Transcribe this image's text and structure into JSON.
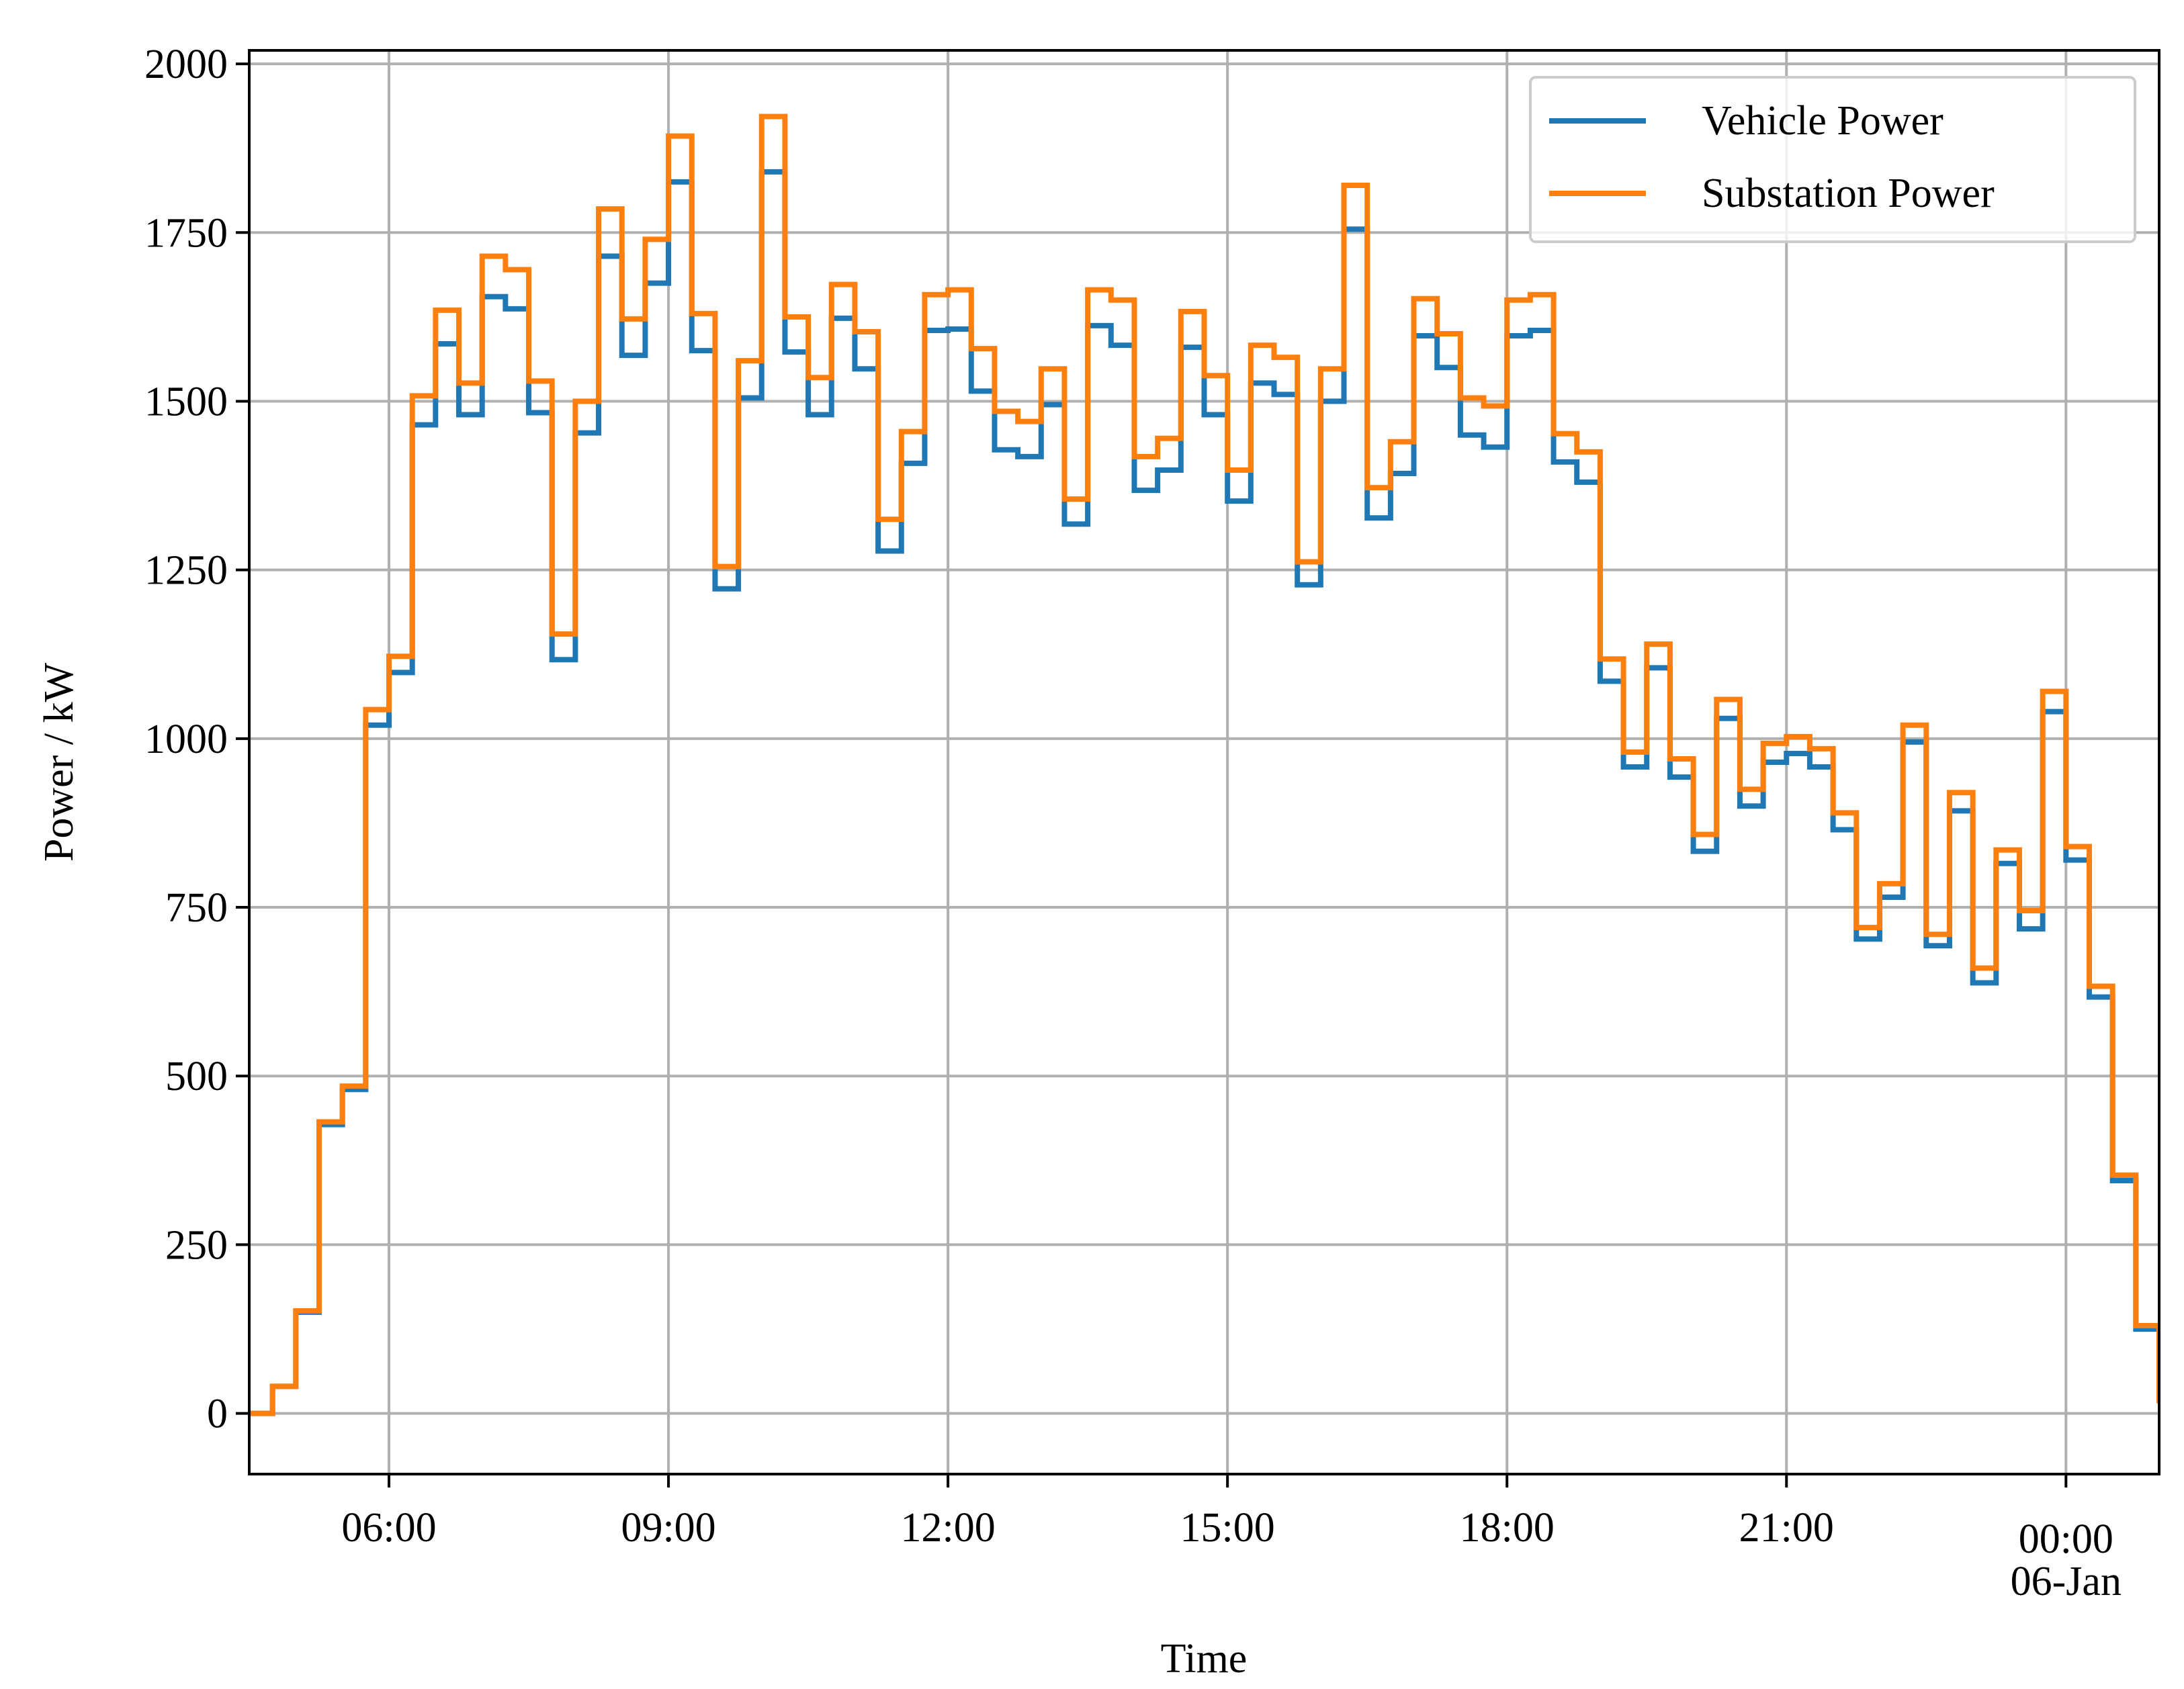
{
  "chart_data": {
    "type": "step",
    "x_label": "Time",
    "y_label": "Power / kW",
    "x": [
      4.5,
      4.75,
      5,
      5.25,
      5.5,
      5.75,
      6,
      6.25,
      6.5,
      6.75,
      7,
      7.25,
      7.5,
      7.75,
      8,
      8.25,
      8.5,
      8.75,
      9,
      9.25,
      9.5,
      9.75,
      10,
      10.25,
      10.5,
      10.75,
      11,
      11.25,
      11.5,
      11.75,
      12,
      12.25,
      12.5,
      12.75,
      13,
      13.25,
      13.5,
      13.75,
      14,
      14.25,
      14.5,
      14.75,
      15,
      15.25,
      15.5,
      15.75,
      16,
      16.25,
      16.5,
      16.75,
      17,
      17.25,
      17.5,
      17.75,
      18,
      18.25,
      18.5,
      18.75,
      19,
      19.25,
      19.5,
      19.75,
      20,
      20.25,
      20.5,
      20.75,
      21,
      21.25,
      21.5,
      21.75,
      22,
      22.25,
      22.5,
      22.75,
      23,
      23.25,
      23.5,
      23.75,
      24,
      24.25,
      24.5,
      24.75,
      25
    ],
    "series": [
      {
        "name": "Vehicle Power",
        "color": "#1f77b4",
        "values": [
          0,
          40,
          150,
          428,
          480,
          1020,
          1098,
          1465,
          1585,
          1480,
          1655,
          1637,
          1483,
          1117,
          1453,
          1715,
          1568,
          1675,
          1825,
          1575,
          1222,
          1505,
          1840,
          1573,
          1480,
          1623,
          1548,
          1278,
          1408,
          1605,
          1607,
          1515,
          1428,
          1418,
          1495,
          1318,
          1612,
          1583,
          1368,
          1398,
          1580,
          1480,
          1352,
          1527,
          1510,
          1228,
          1500,
          1755,
          1327,
          1393,
          1597,
          1550,
          1450,
          1432,
          1597,
          1605,
          1410,
          1380,
          1085,
          958,
          1105,
          943,
          833,
          1030,
          900,
          965,
          978,
          958,
          865,
          703,
          765,
          995,
          693,
          893,
          638,
          815,
          718,
          1040,
          820,
          617,
          345,
          125,
          15
        ]
      },
      {
        "name": "Substation Power",
        "color": "#ff7f0e",
        "values": [
          0,
          40,
          152,
          432,
          485,
          1043,
          1122,
          1508,
          1635,
          1527,
          1715,
          1695,
          1530,
          1155,
          1500,
          1785,
          1622,
          1740,
          1893,
          1630,
          1255,
          1560,
          1922,
          1625,
          1535,
          1673,
          1603,
          1325,
          1455,
          1658,
          1665,
          1578,
          1485,
          1470,
          1548,
          1355,
          1665,
          1650,
          1418,
          1445,
          1633,
          1538,
          1398,
          1583,
          1565,
          1262,
          1548,
          1820,
          1372,
          1440,
          1652,
          1600,
          1505,
          1493,
          1650,
          1658,
          1452,
          1425,
          1118,
          980,
          1140,
          970,
          858,
          1058,
          925,
          993,
          1003,
          985,
          890,
          720,
          785,
          1020,
          710,
          920,
          660,
          835,
          745,
          1070,
          840,
          633,
          353,
          130,
          15
        ]
      }
    ],
    "xlim": [
      4.5,
      25
    ],
    "xticks": [
      {
        "value": 6,
        "label": "06:00"
      },
      {
        "value": 9,
        "label": "09:00"
      },
      {
        "value": 12,
        "label": "12:00"
      },
      {
        "value": 15,
        "label": "15:00"
      },
      {
        "value": 18,
        "label": "18:00"
      },
      {
        "value": 21,
        "label": "21:00"
      },
      {
        "value": 24,
        "label": "00:00",
        "date": "06-Jan"
      }
    ],
    "ylim": [
      -90,
      2020
    ],
    "yticks": [
      0,
      250,
      500,
      750,
      1000,
      1250,
      1500,
      1750,
      2000
    ],
    "grid": true,
    "legend": "upper right"
  }
}
